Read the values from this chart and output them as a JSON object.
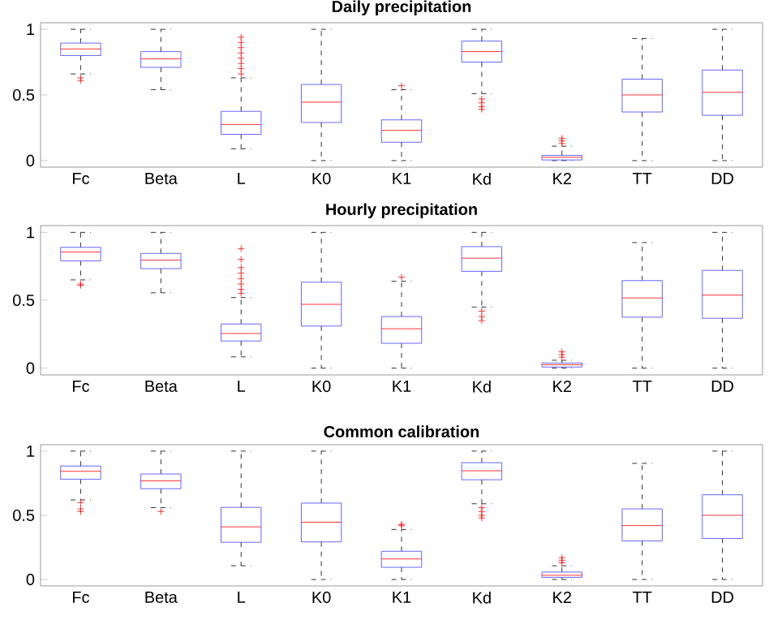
{
  "chart_data": [
    {
      "type": "box",
      "title": "Daily precipitation",
      "categories": [
        "Fc",
        "Beta",
        "L",
        "K0",
        "K1",
        "Kd",
        "K2",
        "TT",
        "DD"
      ],
      "ylim": [
        -0.05,
        1.05
      ],
      "yticks": [
        0,
        0.5,
        1
      ],
      "grid": false,
      "series": [
        {
          "color": "#4040ff",
          "boxes": [
            {
              "low": 0.66,
              "q1": 0.8,
              "median": 0.85,
              "q3": 0.895,
              "high": 1,
              "outliers": [
                0.63,
                0.61
              ]
            },
            {
              "low": 0.54,
              "q1": 0.71,
              "median": 0.775,
              "q3": 0.83,
              "high": 1
            },
            {
              "low": 0.09,
              "q1": 0.2,
              "median": 0.275,
              "q3": 0.375,
              "high": 0.63,
              "outliers": [
                0.66,
                0.7,
                0.74,
                0.78,
                0.82,
                0.86,
                0.9,
                0.94
              ]
            },
            {
              "low": 0,
              "q1": 0.29,
              "median": 0.445,
              "q3": 0.58,
              "high": 1
            },
            {
              "low": 0,
              "q1": 0.14,
              "median": 0.23,
              "q3": 0.31,
              "high": 0.54,
              "outliers": [
                0.57
              ]
            },
            {
              "low": 0.51,
              "q1": 0.75,
              "median": 0.83,
              "q3": 0.91,
              "high": 1,
              "outliers": [
                0.47,
                0.44,
                0.41,
                0.39
              ]
            },
            {
              "low": 0,
              "q1": 0.005,
              "median": 0.025,
              "q3": 0.04,
              "high": 0.11,
              "outliers": [
                0.13,
                0.15,
                0.17
              ]
            },
            {
              "low": 0,
              "q1": 0.37,
              "median": 0.5,
              "q3": 0.62,
              "high": 0.93
            },
            {
              "low": 0,
              "q1": 0.345,
              "median": 0.52,
              "q3": 0.69,
              "high": 1
            }
          ]
        }
      ]
    },
    {
      "type": "box",
      "title": "Hourly precipitation",
      "categories": [
        "Fc",
        "Beta",
        "L",
        "K0",
        "K1",
        "Kd",
        "K2",
        "TT",
        "DD"
      ],
      "ylim": [
        -0.05,
        1.05
      ],
      "yticks": [
        0,
        0.5,
        1
      ],
      "grid": false,
      "series": [
        {
          "color": "#4040ff",
          "boxes": [
            {
              "low": 0.65,
              "q1": 0.79,
              "median": 0.855,
              "q3": 0.89,
              "high": 1,
              "outliers": [
                0.62,
                0.61
              ]
            },
            {
              "low": 0.555,
              "q1": 0.733,
              "median": 0.795,
              "q3": 0.845,
              "high": 1
            },
            {
              "low": 0.083,
              "q1": 0.2,
              "median": 0.255,
              "q3": 0.325,
              "high": 0.52,
              "outliers": [
                0.55,
                0.58,
                0.62,
                0.66,
                0.7,
                0.74,
                0.8,
                0.88
              ]
            },
            {
              "low": 0,
              "q1": 0.31,
              "median": 0.47,
              "q3": 0.633,
              "high": 1
            },
            {
              "low": 0,
              "q1": 0.183,
              "median": 0.29,
              "q3": 0.38,
              "high": 0.64,
              "outliers": [
                0.67
              ]
            },
            {
              "low": 0.45,
              "q1": 0.713,
              "median": 0.81,
              "q3": 0.895,
              "high": 1,
              "outliers": [
                0.42,
                0.38,
                0.35
              ]
            },
            {
              "low": 0,
              "q1": 0.008,
              "median": 0.025,
              "q3": 0.038,
              "high": 0.058,
              "outliers": [
                0.08,
                0.1,
                0.12
              ]
            },
            {
              "low": 0,
              "q1": 0.375,
              "median": 0.517,
              "q3": 0.645,
              "high": 0.925
            },
            {
              "low": 0,
              "q1": 0.367,
              "median": 0.538,
              "q3": 0.72,
              "high": 1
            }
          ]
        }
      ]
    },
    {
      "type": "box",
      "title": "Common calibration",
      "categories": [
        "Fc",
        "Beta",
        "L",
        "K0",
        "K1",
        "Kd",
        "K2",
        "TT",
        "DD"
      ],
      "ylim": [
        -0.05,
        1.05
      ],
      "yticks": [
        0,
        0.5,
        1
      ],
      "grid": false,
      "series": [
        {
          "color": "#4040ff",
          "boxes": [
            {
              "low": 0.62,
              "q1": 0.781,
              "median": 0.843,
              "q3": 0.884,
              "high": 1,
              "outliers": [
                0.6,
                0.55,
                0.53
              ]
            },
            {
              "low": 0.56,
              "q1": 0.707,
              "median": 0.768,
              "q3": 0.822,
              "high": 1,
              "outliers": [
                0.53
              ]
            },
            {
              "low": 0.107,
              "q1": 0.29,
              "median": 0.41,
              "q3": 0.562,
              "high": 1
            },
            {
              "low": 0,
              "q1": 0.293,
              "median": 0.446,
              "q3": 0.595,
              "high": 1
            },
            {
              "low": 0,
              "q1": 0.095,
              "median": 0.16,
              "q3": 0.22,
              "high": 0.39,
              "outliers": [
                0.42,
                0.43
              ]
            },
            {
              "low": 0.59,
              "q1": 0.777,
              "median": 0.847,
              "q3": 0.91,
              "high": 1,
              "outliers": [
                0.56,
                0.53,
                0.5,
                0.48
              ]
            },
            {
              "low": 0,
              "q1": 0.017,
              "median": 0.033,
              "q3": 0.058,
              "high": 0.107,
              "outliers": [
                0.13,
                0.15,
                0.17
              ]
            },
            {
              "low": 0,
              "q1": 0.3,
              "median": 0.42,
              "q3": 0.55,
              "high": 0.905
            },
            {
              "low": 0,
              "q1": 0.32,
              "median": 0.5,
              "q3": 0.66,
              "high": 1
            }
          ]
        }
      ]
    }
  ]
}
